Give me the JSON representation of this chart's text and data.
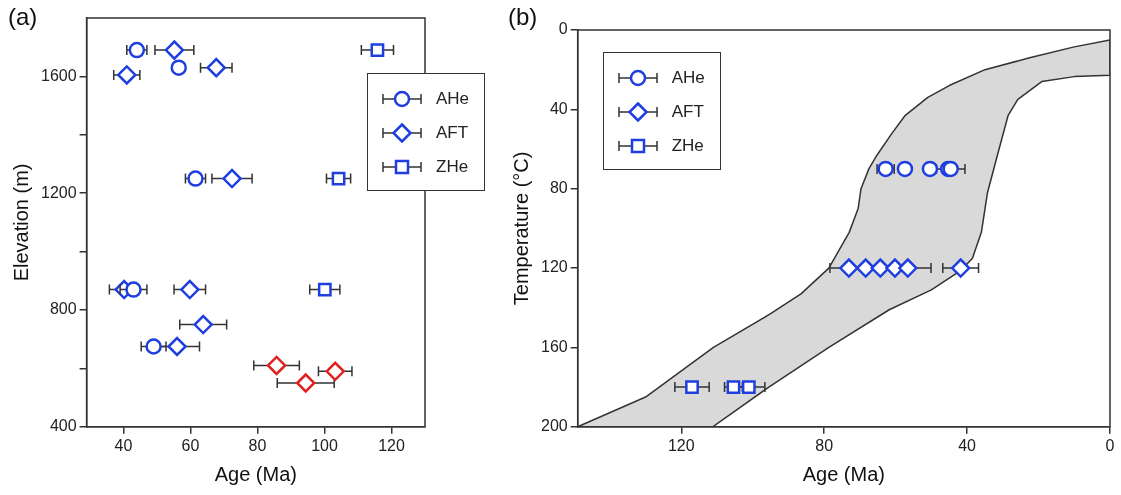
{
  "chart_data": [
    {
      "type": "scatter",
      "title": "(a)",
      "xlabel": "Age (Ma)",
      "ylabel": "Elevation (m)",
      "xlim": [
        29,
        130
      ],
      "xticks": [
        40,
        60,
        80,
        100,
        120
      ],
      "ylim": [
        400,
        1800
      ],
      "yticks": [
        400,
        {
          "value": 600,
          "label": null
        },
        800,
        {
          "value": 1000,
          "label": null
        },
        1200,
        {
          "value": 1400,
          "label": null
        },
        1600
      ],
      "legend": "right",
      "series": [
        {
          "name": "AHe",
          "color": "#1f3ee0",
          "marker": "circle",
          "x": [
            44,
            56.5,
            61.5,
            43,
            49
          ],
          "values": [
            1690,
            1630,
            1250,
            870,
            675
          ],
          "xerrors": [
            3,
            null,
            3,
            4,
            3.7
          ]
        },
        {
          "name": "AFT",
          "color": "#1f3ee0",
          "marker": "diamond",
          "x": [
            55.2,
            67.7,
            41,
            72.4,
            40.2,
            59.8,
            63.8,
            56
          ],
          "values": [
            1690,
            1630,
            1605,
            1250,
            870,
            870,
            750,
            675
          ],
          "xerrors": [
            5.8,
            4.7,
            3.9,
            6,
            4.4,
            4.7,
            7,
            6.7
          ]
        },
        {
          "color": "#e02020",
          "marker": "diamond",
          "x": [
            85.7,
            103.2,
            94.4
          ],
          "values": [
            610,
            590,
            550
          ],
          "xerrors": [
            6.8,
            5,
            8.5
          ]
        },
        {
          "name": "ZHe",
          "color": "#1f3ee0",
          "marker": "square",
          "x": [
            115.8,
            104.2,
            100.1
          ],
          "values": [
            1690,
            1250,
            870
          ],
          "xerrors": [
            4.8,
            3.6,
            4.5
          ]
        }
      ]
    },
    {
      "type": "scatter",
      "title": "(b)",
      "xlabel": "Age (Ma)",
      "ylabel": "Temperature (°C)",
      "xlim": [
        149,
        0
      ],
      "xticks": [
        120,
        80,
        40,
        0
      ],
      "ylim": [
        200,
        0
      ],
      "yticks": [
        0,
        40,
        80,
        120,
        160,
        200
      ],
      "legend": "top left",
      "series": [
        {
          "type": "area",
          "color": "#d9d9d9",
          "x": [
            149,
            130,
            111,
            95,
            86.5,
            78.7,
            73,
            70.5,
            69.7,
            67.5,
            65.2,
            61,
            57.3,
            51,
            45,
            35,
            22.5,
            10,
            0,
            0,
            10,
            19.1,
            25.8,
            28.5,
            31.5,
            34.3,
            36,
            38.5,
            41.6,
            50,
            61.8,
            78.7,
            95.5,
            111.2,
            149
          ],
          "values": [
            200,
            185,
            160,
            143,
            133,
            120,
            102,
            90,
            80,
            70,
            63,
            52,
            43,
            34,
            28,
            20,
            14,
            8.5,
            5,
            22.8,
            23.5,
            26,
            35,
            43,
            63,
            82,
            102,
            115,
            121,
            131,
            141,
            160,
            180,
            200,
            200
          ]
        },
        {
          "name": "AHe",
          "color": "#1f3ee0",
          "marker": "circle",
          "x": [
            62.8,
            57.4,
            50.4,
            45.3,
            44.6
          ],
          "values": [
            70,
            70,
            70,
            70,
            70
          ],
          "xerrors": [
            2.4,
            null,
            null,
            null,
            4
          ]
        },
        {
          "name": "AFT",
          "color": "#1f3ee0",
          "marker": "diamond",
          "x": [
            73.1,
            68.4,
            64.3,
            60.2,
            56.6,
            41.8
          ],
          "values": [
            120,
            120,
            120,
            120,
            120,
            120
          ],
          "xerrors": [
            5.3,
            null,
            null,
            null,
            6.5,
            5
          ]
        },
        {
          "name": "ZHe",
          "color": "#1f3ee0",
          "marker": "square",
          "x": [
            117,
            105.4,
            101.1
          ],
          "values": [
            180,
            180,
            180
          ],
          "xerrors": [
            4.8,
            2.5,
            4.5
          ]
        }
      ]
    }
  ]
}
